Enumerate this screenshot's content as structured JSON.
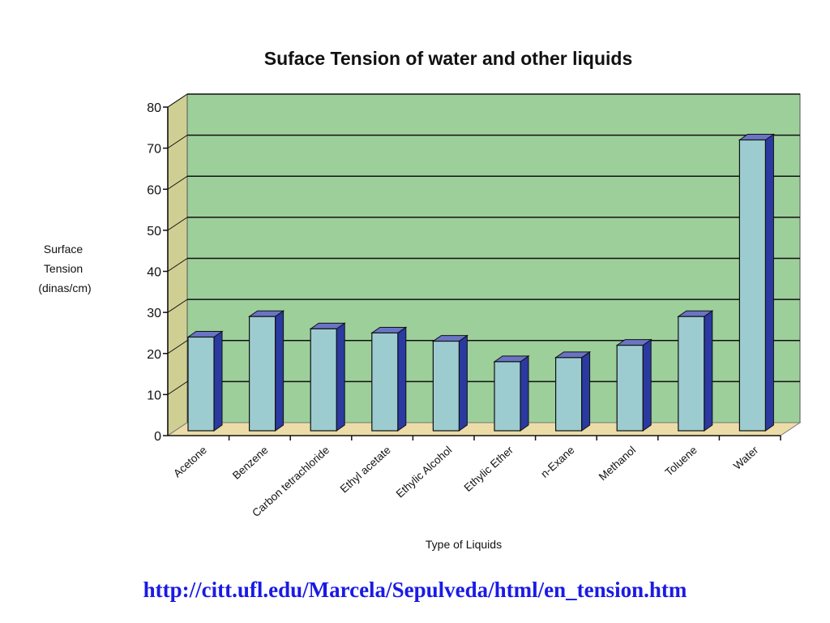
{
  "chart_data": {
    "type": "bar",
    "title": "Suface Tension of water and other liquids",
    "xlabel": "Type of Liquids",
    "ylabel_lines": [
      "Surface",
      "Tension",
      "(dinas/cm)"
    ],
    "categories": [
      "Acetone",
      "Benzene",
      "Carbon tetrachloride",
      "Ethyl acetate",
      "Ethylic Alcohol",
      "Ethylic Ether",
      "n-Exane",
      "Methanol",
      "Toluene",
      "Water"
    ],
    "values": [
      24,
      29,
      26,
      25,
      23,
      18,
      19,
      22,
      29,
      72
    ],
    "ylim": [
      0,
      80
    ],
    "yticks": [
      0,
      10,
      20,
      30,
      40,
      50,
      60,
      70,
      80
    ],
    "grid": true,
    "legend": "none",
    "colors": {
      "plot_background": "#9dcf9b",
      "side_wall": "#cfcf94",
      "floor": "#ecdca8",
      "bar_front": "#9cccd0",
      "bar_side": "#2a3aa0",
      "bar_top": "#6a74c4",
      "gridline": "#111111"
    }
  },
  "source_url": "http://citt.ufl.edu/Marcela/Sepulveda/html/en_tension.htm"
}
